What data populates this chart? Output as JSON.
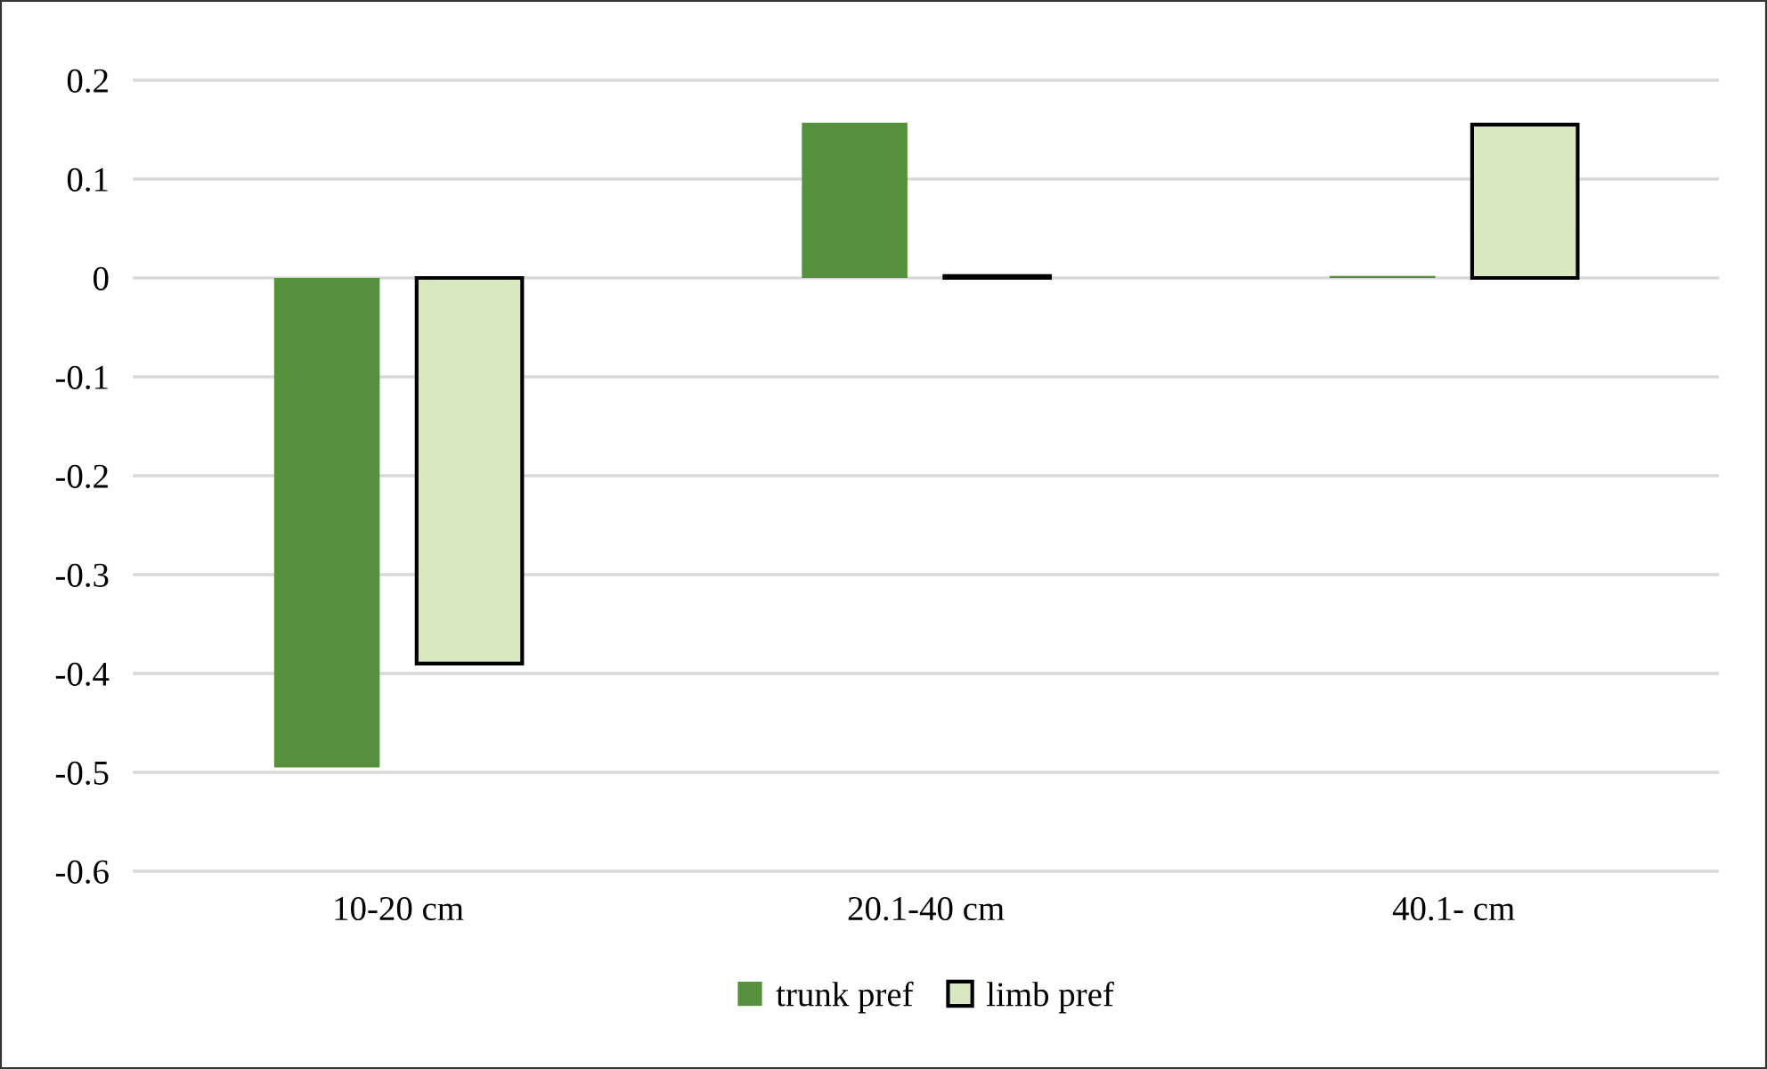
{
  "chart_data": {
    "type": "bar",
    "categories": [
      "10-20 cm",
      "20.1-40 cm",
      "40.1- cm"
    ],
    "series": [
      {
        "name": "trunk pref",
        "color": "#55903d",
        "values": [
          -0.495,
          0.157,
          0.002
        ]
      },
      {
        "name": "limb pref",
        "color": "#d9e8c1",
        "values": [
          -0.39,
          0.002,
          0.155
        ]
      }
    ],
    "ylim": [
      -0.6,
      0.2
    ],
    "yticks": [
      {
        "value": -0.6,
        "label": "-0.6"
      },
      {
        "value": -0.5,
        "label": "-0.5"
      },
      {
        "value": -0.4,
        "label": "-0.4"
      },
      {
        "value": -0.3,
        "label": "-0.3"
      },
      {
        "value": -0.2,
        "label": "-0.2"
      },
      {
        "value": -0.1,
        "label": "-0.1"
      },
      {
        "value": 0,
        "label": "0"
      },
      {
        "value": 0.1,
        "label": "0.1"
      },
      {
        "value": 0.2,
        "label": "0.2"
      }
    ],
    "grid": "y",
    "legend": "bottom"
  }
}
